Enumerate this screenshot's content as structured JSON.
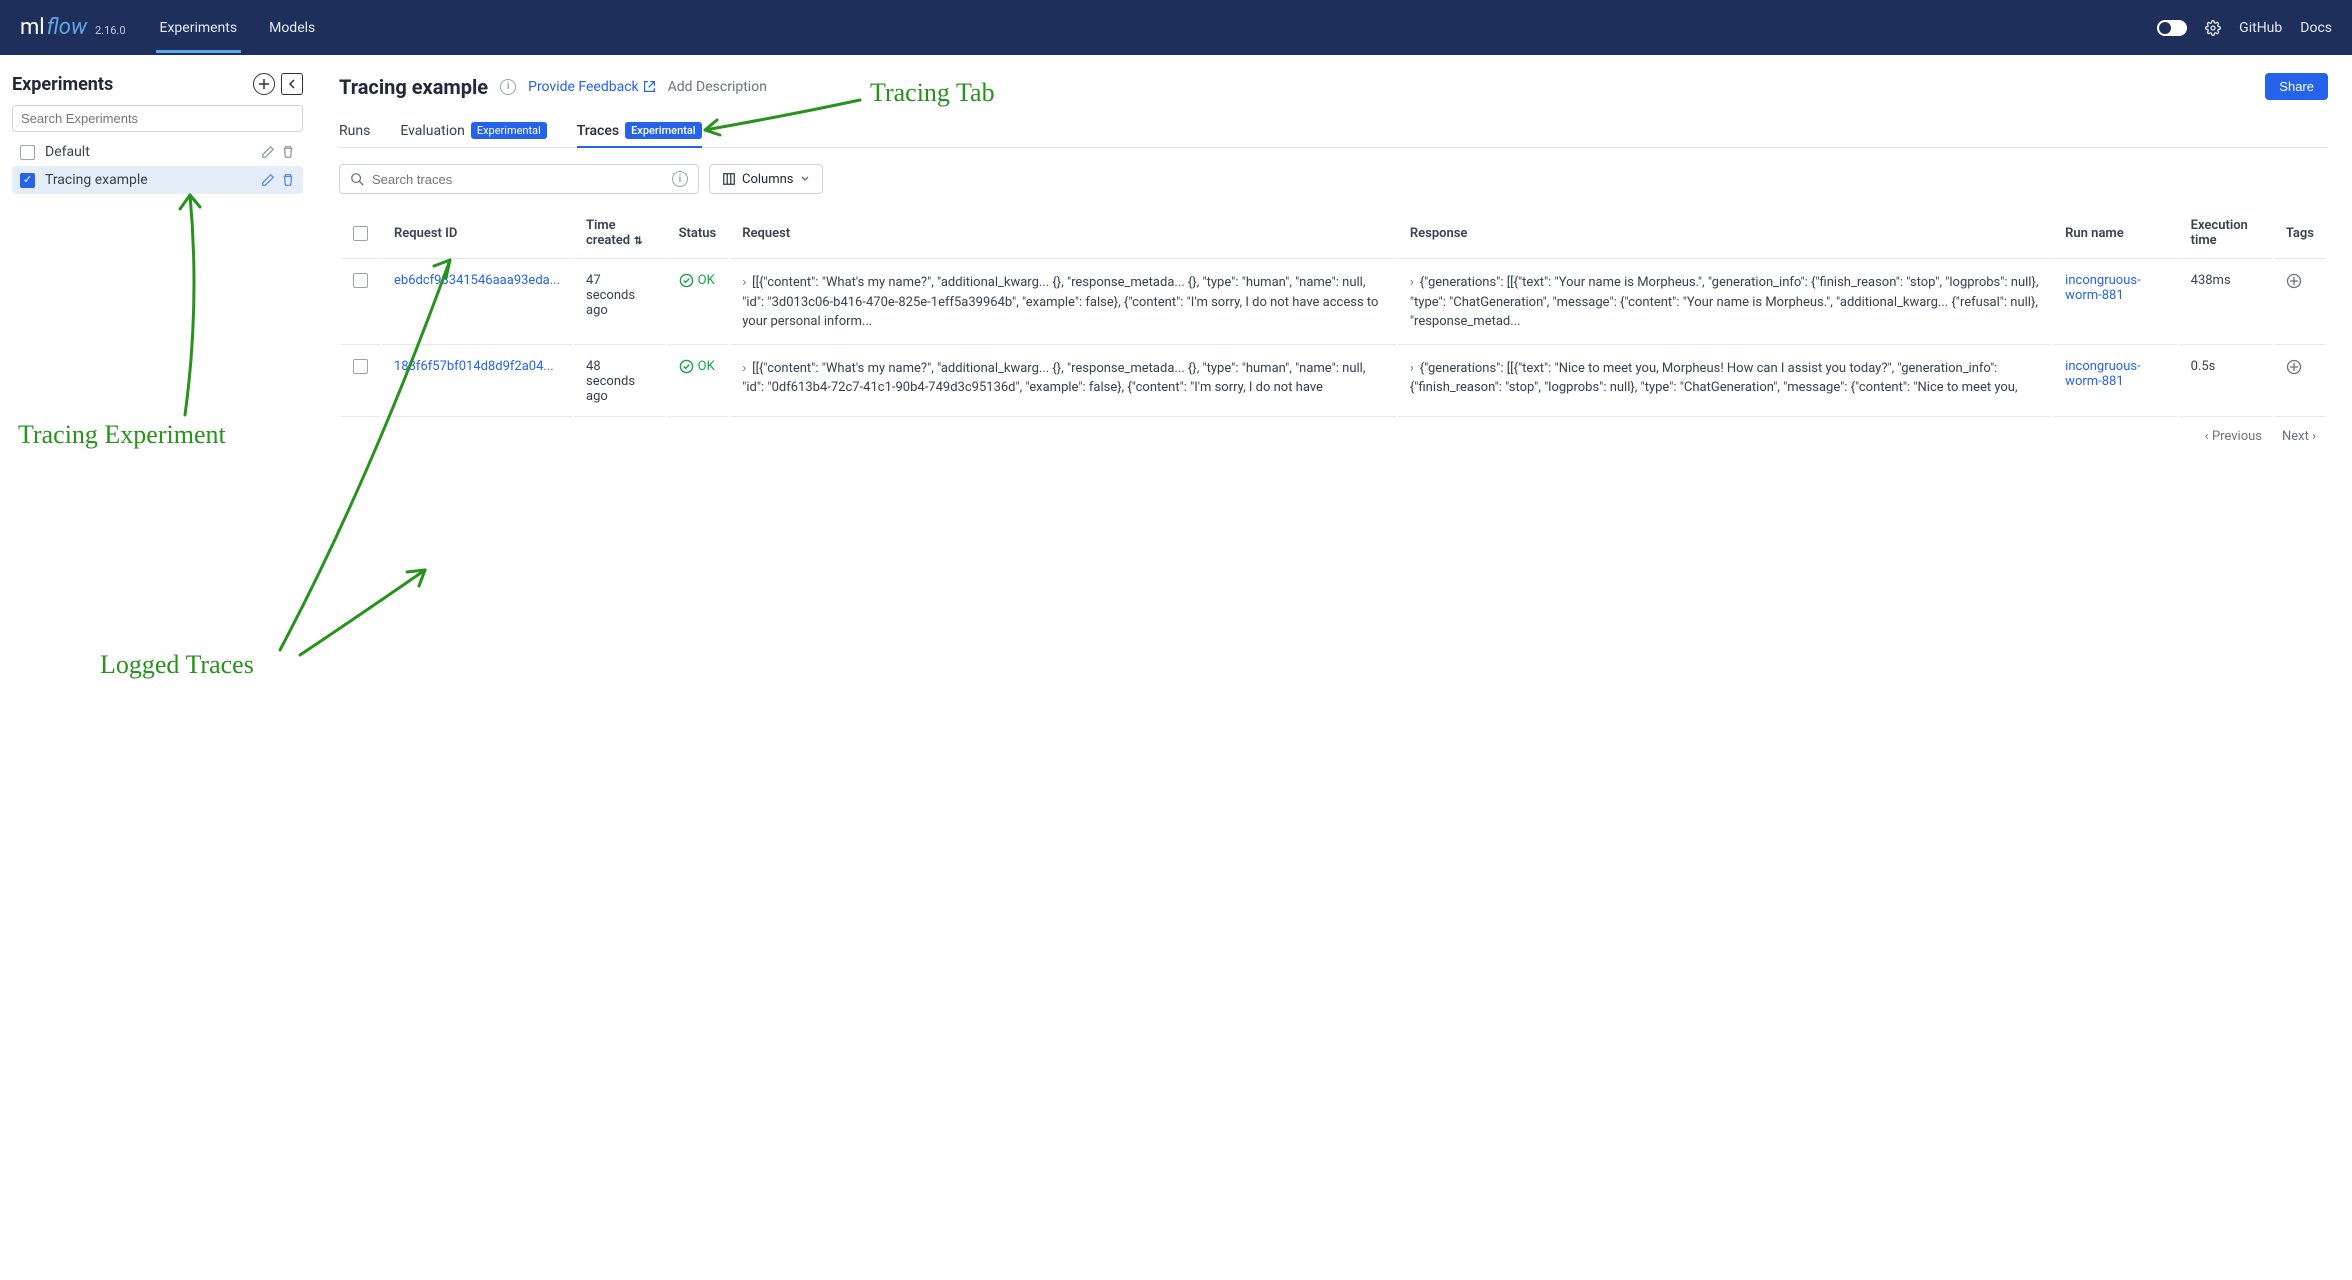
{
  "brand": {
    "ml": "ml",
    "flow": "flow",
    "version": "2.16.0"
  },
  "nav": {
    "experiments": "Experiments",
    "models": "Models",
    "github": "GitHub",
    "docs": "Docs"
  },
  "sidebar": {
    "title": "Experiments",
    "search_placeholder": "Search Experiments",
    "items": [
      {
        "label": "Default",
        "selected": false
      },
      {
        "label": "Tracing example",
        "selected": true
      }
    ]
  },
  "page": {
    "title": "Tracing example",
    "feedback": "Provide Feedback",
    "add_desc": "Add Description",
    "share": "Share"
  },
  "tabs": {
    "runs": "Runs",
    "evaluation": "Evaluation",
    "traces": "Traces",
    "badge": "Experimental"
  },
  "toolbar": {
    "search_placeholder": "Search traces",
    "columns": "Columns"
  },
  "columns": {
    "request_id": "Request ID",
    "time_created": "Time created",
    "status": "Status",
    "request": "Request",
    "response": "Response",
    "run_name": "Run name",
    "exec_time": "Execution time",
    "tags": "Tags"
  },
  "rows": [
    {
      "id": "eb6dcf93341546aaa93eda...",
      "time": "47 seconds ago",
      "status": "OK",
      "request": "[[{\"content\": \"What's my name?\", \"additional_kwarg... {}, \"response_metada... {}, \"type\": \"human\", \"name\": null, \"id\": \"3d013c06-b416-470e-825e-1eff5a39964b\", \"example\": false}, {\"content\": \"I'm sorry, I do not have access to your personal inform...",
      "response": "{\"generations\": [[{\"text\": \"Your name is Morpheus.\", \"generation_info\": {\"finish_reason\": \"stop\", \"logprobs\": null}, \"type\": \"ChatGeneration\", \"message\": {\"content\": \"Your name is Morpheus.\", \"additional_kwarg... {\"refusal\": null}, \"response_metad...",
      "run_name": "incongruous-worm-881",
      "exec_time": "438ms"
    },
    {
      "id": "183f6f57bf014d8d9f2a04...",
      "time": "48 seconds ago",
      "status": "OK",
      "request": "[[{\"content\": \"What's my name?\", \"additional_kwarg... {}, \"response_metada... {}, \"type\": \"human\", \"name\": null, \"id\": \"0df613b4-72c7-41c1-90b4-749d3c95136d\", \"example\": false}, {\"content\": \"I'm sorry, I do not have",
      "response": "{\"generations\": [[{\"text\": \"Nice to meet you, Morpheus! How can I assist you today?\", \"generation_info\": {\"finish_reason\": \"stop\", \"logprobs\": null}, \"type\": \"ChatGeneration\", \"message\": {\"content\": \"Nice to meet you,",
      "run_name": "incongruous-worm-881",
      "exec_time": "0.5s"
    }
  ],
  "pager": {
    "prev": "Previous",
    "next": "Next"
  },
  "annotations": {
    "tracing_tab": "Tracing Tab",
    "tracing_experiment": "Tracing Experiment",
    "logged_traces": "Logged Traces"
  },
  "colors": {
    "navy": "#1e2f5c",
    "blue": "#2563eb",
    "lightblue": "#5fa6e8",
    "green_anno": "#27921c",
    "border": "#e5e7eb",
    "text": "#1f2937",
    "muted": "#6b7280"
  }
}
